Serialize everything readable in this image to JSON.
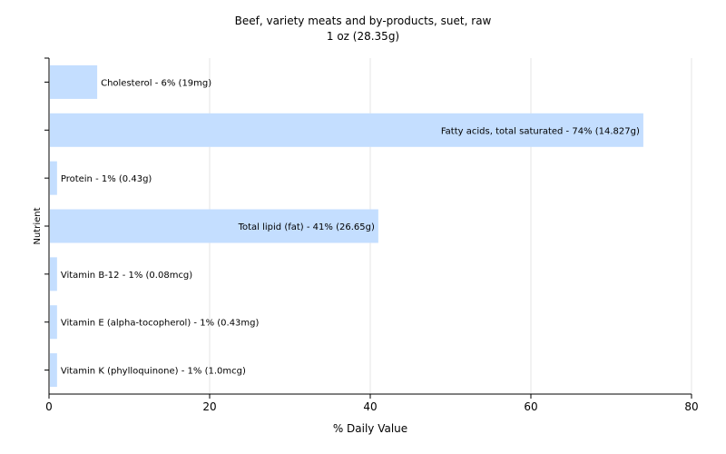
{
  "chart_data": {
    "type": "bar",
    "orientation": "horizontal",
    "title": "Beef, variety meats and by-products, suet, raw",
    "subtitle": "1 oz (28.35g)",
    "xlabel": "% Daily Value",
    "ylabel": "Nutrient",
    "xlim": [
      0,
      80
    ],
    "xticks": [
      0,
      20,
      40,
      60,
      80
    ],
    "grid": true,
    "bar_color": "#c4deff",
    "bars": [
      {
        "label": "Cholesterol - 6% (19mg)",
        "value": 6
      },
      {
        "label": "Fatty acids, total saturated - 74% (14.827g)",
        "value": 74
      },
      {
        "label": "Protein - 1% (0.43g)",
        "value": 1
      },
      {
        "label": "Total lipid (fat) - 41% (26.65g)",
        "value": 41
      },
      {
        "label": "Vitamin B-12 - 1% (0.08mcg)",
        "value": 1
      },
      {
        "label": "Vitamin E (alpha-tocopherol) - 1% (0.43mg)",
        "value": 1
      },
      {
        "label": "Vitamin K (phylloquinone) - 1% (1.0mcg)",
        "value": 1
      }
    ]
  }
}
